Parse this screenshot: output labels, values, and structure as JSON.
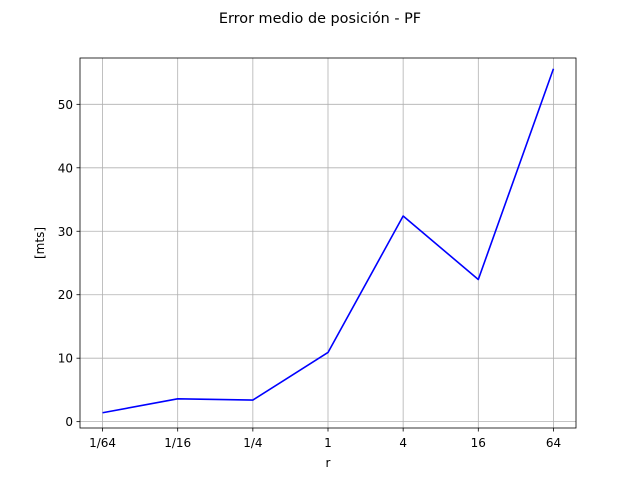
{
  "chart_data": {
    "type": "line",
    "title": "Error medio de posición - PF",
    "xlabel": "r",
    "ylabel": "[mts]",
    "categories": [
      "1/64",
      "1/16",
      "1/4",
      "1",
      "4",
      "16",
      "64"
    ],
    "x": [
      0.015625,
      0.0625,
      0.25,
      1,
      4,
      16,
      64
    ],
    "xscale": "log",
    "ylim": [
      -1,
      57.3
    ],
    "yticks": [
      0,
      10,
      20,
      30,
      40,
      50
    ],
    "series": [
      {
        "color": "#0000ff",
        "values": [
          1.4,
          3.6,
          3.4,
          10.9,
          32.4,
          22.4,
          55.6
        ]
      }
    ],
    "grid": true,
    "grid_color": "#b0b0b0"
  }
}
